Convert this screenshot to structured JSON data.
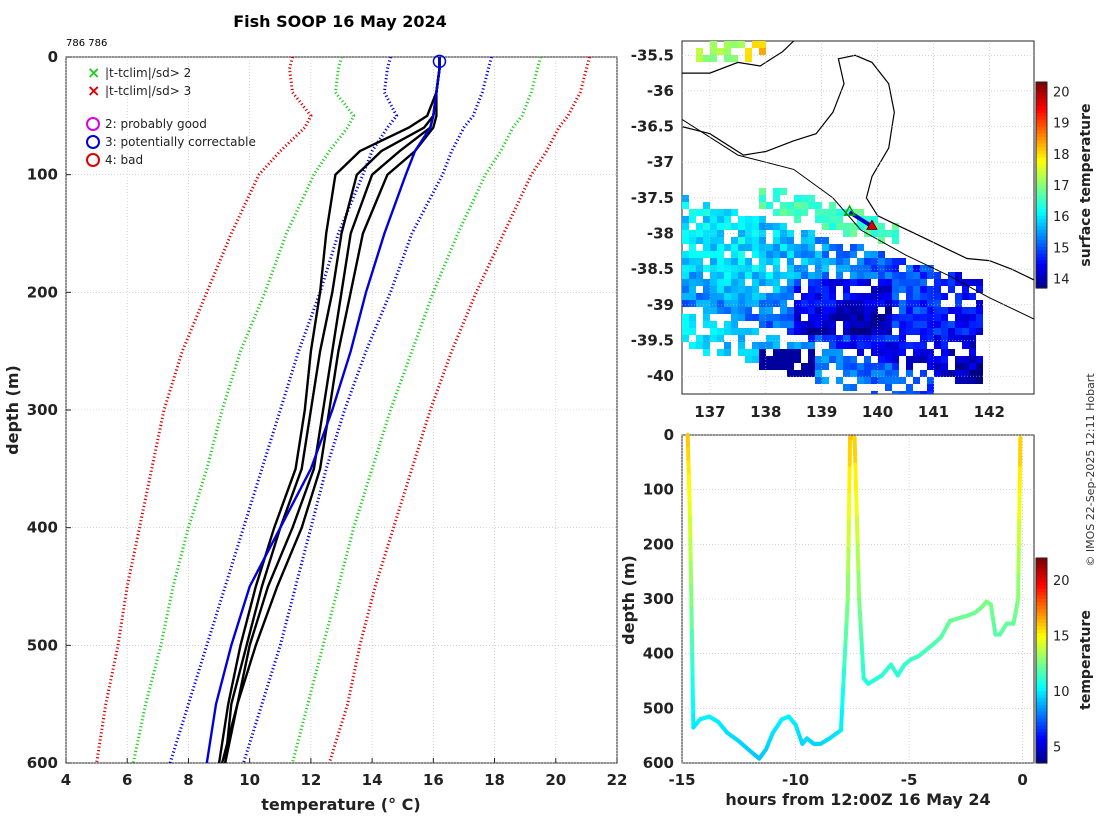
{
  "title": "Fish SOOP 16 May 2024",
  "id_label": "786 786",
  "credit": "© IMOS 22-Sep-2025 12:11 Hobart",
  "chart_data": [
    {
      "type": "line",
      "name": "profile",
      "xlabel": "temperature (° C)",
      "ylabel": "depth (m)",
      "xlim": [
        4,
        22
      ],
      "ylim": [
        0,
        600
      ],
      "xticks": [
        "4",
        "6",
        "8",
        "10",
        "12",
        "14",
        "16",
        "18",
        "20",
        "22"
      ],
      "yticks": [
        "0",
        "100",
        "200",
        "300",
        "400",
        "500",
        "600"
      ],
      "legend": [
        {
          "label": "|t-tclim|/sd> 2",
          "marker": "x",
          "color": "#22cc22"
        },
        {
          "label": "|t-tclim|/sd> 3",
          "marker": "x",
          "color": "#dd0000"
        },
        {
          "label": "2: probably good",
          "marker": "o",
          "color": "#dd00dd"
        },
        {
          "label": "3: potentially correctable",
          "marker": "o",
          "color": "#0000dd"
        },
        {
          "label": "4: bad",
          "marker": "o",
          "color": "#dd0000"
        }
      ],
      "depths": [
        0,
        10,
        30,
        50,
        60,
        80,
        100,
        150,
        200,
        250,
        300,
        350,
        400,
        450,
        500,
        550,
        600
      ],
      "series": [
        {
          "name": "clim -3sd",
          "color": "#dd0000",
          "style": "dotted",
          "values": [
            11.4,
            11.3,
            11.4,
            12.0,
            11.8,
            11.0,
            10.3,
            9.4,
            8.6,
            7.8,
            7.2,
            6.8,
            6.4,
            6.0,
            5.7,
            5.3,
            5.0
          ]
        },
        {
          "name": "clim -2sd",
          "color": "#22cc22",
          "style": "dotted",
          "values": [
            13.0,
            12.9,
            12.8,
            13.4,
            13.2,
            12.6,
            12.1,
            11.2,
            10.5,
            9.7,
            9.1,
            8.6,
            8.0,
            7.5,
            7.1,
            6.6,
            6.2
          ]
        },
        {
          "name": "clim -1sd",
          "color": "#0000dd",
          "style": "dotted",
          "values": [
            14.6,
            14.5,
            14.4,
            14.8,
            14.5,
            14.0,
            13.7,
            12.9,
            12.3,
            11.6,
            11.0,
            10.4,
            9.8,
            9.2,
            8.6,
            8.0,
            7.4
          ]
        },
        {
          "name": "clim +1sd",
          "color": "#0000dd",
          "style": "dotted",
          "values": [
            17.9,
            17.8,
            17.6,
            17.3,
            17.0,
            16.6,
            16.3,
            15.3,
            14.6,
            13.8,
            13.1,
            12.5,
            12.0,
            11.5,
            11.0,
            10.4,
            9.8
          ]
        },
        {
          "name": "clim +2sd",
          "color": "#22cc22",
          "style": "dotted",
          "values": [
            19.5,
            19.4,
            19.2,
            18.9,
            18.6,
            18.2,
            17.7,
            16.8,
            16.0,
            15.3,
            14.6,
            14.0,
            13.4,
            12.9,
            12.4,
            11.9,
            11.4
          ]
        },
        {
          "name": "clim +3sd",
          "color": "#dd0000",
          "style": "dotted",
          "values": [
            21.1,
            21.0,
            20.8,
            20.4,
            20.1,
            19.7,
            19.2,
            18.3,
            17.4,
            16.6,
            15.9,
            15.3,
            14.7,
            14.1,
            13.6,
            13.2,
            12.6
          ]
        },
        {
          "name": "profile 1",
          "color": "#000000",
          "style": "solid",
          "values": [
            16.2,
            16.2,
            16.1,
            16.0,
            15.7,
            14.3,
            13.5,
            13.0,
            12.7,
            12.3,
            12.0,
            11.7,
            11.0,
            10.4,
            9.9,
            9.4,
            9.2
          ]
        },
        {
          "name": "profile 2",
          "color": "#000000",
          "style": "solid",
          "values": [
            16.2,
            16.2,
            16.1,
            16.0,
            15.9,
            14.9,
            14.0,
            13.3,
            13.0,
            12.7,
            12.4,
            12.1,
            11.4,
            10.6,
            10.0,
            9.6,
            9.1
          ]
        },
        {
          "name": "profile 3",
          "color": "#000000",
          "style": "solid",
          "values": [
            16.2,
            16.2,
            16.1,
            15.8,
            15.2,
            13.6,
            12.8,
            12.5,
            12.3,
            12.0,
            11.8,
            11.5,
            10.8,
            10.2,
            9.7,
            9.3,
            9.0
          ]
        },
        {
          "name": "profile 4",
          "color": "#000000",
          "style": "solid",
          "values": [
            16.2,
            16.2,
            16.1,
            16.1,
            16.0,
            15.4,
            14.5,
            13.7,
            13.3,
            12.9,
            12.6,
            12.3,
            11.7,
            10.9,
            10.2,
            9.6,
            9.2
          ]
        },
        {
          "name": "profile 5 (corrected)",
          "color": "#0000dd",
          "style": "solid",
          "values": [
            16.2,
            16.2,
            16.1,
            16.0,
            15.9,
            15.4,
            15.1,
            14.4,
            13.8,
            13.3,
            12.7,
            12.0,
            11.0,
            10.0,
            9.4,
            8.9,
            8.6
          ]
        }
      ],
      "marker_point": {
        "temperature": 16.2,
        "depth": 2,
        "flag": "3: potentially correctable"
      }
    },
    {
      "type": "heatmap",
      "name": "sst-map",
      "colorbar_label": "surface temperature",
      "colorbar_ticks": [
        "14",
        "15",
        "16",
        "17",
        "18",
        "19",
        "20"
      ],
      "colorbar_range": [
        13.7,
        20.3
      ],
      "xlim": [
        136.5,
        142.8
      ],
      "ylim": [
        -40.25,
        -35.3
      ],
      "xticks": [
        "137",
        "138",
        "139",
        "140",
        "141",
        "142"
      ],
      "yticks": [
        "-35.5",
        "-36",
        "-36.5",
        "-37",
        "-37.5",
        "-38",
        "-38.5",
        "-39",
        "-39.5",
        "-40"
      ],
      "track": [
        [
          139.5,
          -37.7
        ],
        [
          139.7,
          -37.8
        ],
        [
          139.9,
          -37.9
        ]
      ]
    },
    {
      "type": "line",
      "name": "time-depth",
      "xlabel": "hours from 12:00Z 16 May 24",
      "ylabel": "depth (m)",
      "colorbar_label": "temperature",
      "colorbar_ticks": [
        "5",
        "10",
        "15",
        "20"
      ],
      "colorbar_range": [
        3.5,
        22
      ],
      "xlim": [
        -15,
        0.5
      ],
      "ylim": [
        0,
        600
      ],
      "xticks": [
        "-15",
        "-10",
        "-5",
        "0"
      ],
      "yticks": [
        "0",
        "100",
        "200",
        "300",
        "400",
        "500",
        "600"
      ],
      "x": [
        -14.75,
        -14.65,
        -14.55,
        -14.5,
        -14.2,
        -13.8,
        -13.4,
        -13.0,
        -12.5,
        -12.0,
        -11.6,
        -11.3,
        -11.0,
        -10.6,
        -10.3,
        -10.0,
        -9.7,
        -9.5,
        -9.2,
        -8.9,
        -8.5,
        -8.0,
        -7.7,
        -7.6,
        -7.4,
        -7.2,
        -7.0,
        -6.8,
        -6.6,
        -6.4,
        -6.2,
        -5.8,
        -5.5,
        -5.2,
        -4.9,
        -4.6,
        -4.3,
        -4.0,
        -3.6,
        -3.2,
        -2.8,
        -2.4,
        -2.1,
        -1.8,
        -1.6,
        -1.4,
        -1.2,
        -1.0,
        -0.7,
        -0.4,
        -0.2,
        -0.1
      ],
      "depth": [
        0,
        150,
        400,
        535,
        520,
        515,
        525,
        545,
        560,
        578,
        592,
        575,
        545,
        520,
        515,
        530,
        565,
        555,
        565,
        565,
        555,
        540,
        300,
        5,
        5,
        300,
        445,
        455,
        450,
        445,
        440,
        420,
        440,
        420,
        410,
        405,
        395,
        385,
        370,
        340,
        335,
        330,
        325,
        315,
        305,
        310,
        365,
        365,
        345,
        345,
        300,
        5
      ]
    }
  ]
}
